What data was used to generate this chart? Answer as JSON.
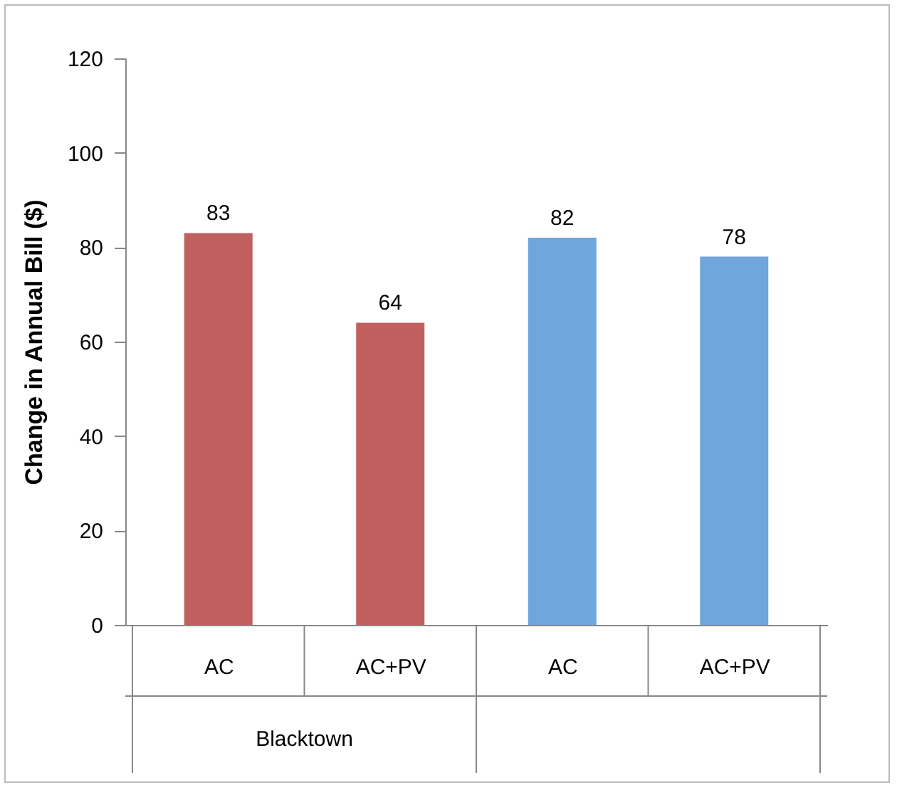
{
  "chart_data": {
    "type": "bar",
    "ylabel": "Change in Annual Bill ($)",
    "categories": [
      "AC",
      "AC+PV",
      "AC",
      "AC+PV"
    ],
    "values": [
      83,
      64,
      82,
      78
    ],
    "colors": [
      "#c0605e",
      "#c0605e",
      "#6fa6dc",
      "#6fa6dc"
    ],
    "ylim": [
      0,
      120
    ],
    "yticks": [
      0,
      20,
      40,
      60,
      80,
      100,
      120
    ],
    "data_labels": true,
    "grid": false,
    "annotations": [
      "Blacktown"
    ]
  }
}
